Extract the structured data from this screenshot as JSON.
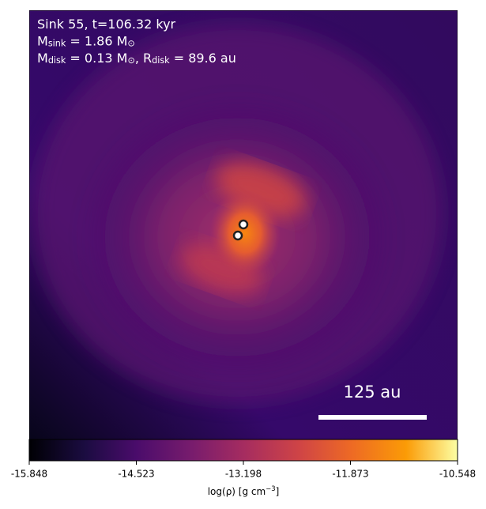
{
  "chart_data": {
    "type": "density_map",
    "annotations": [
      [
        "Sink 55, t=106.32 kyr"
      ],
      [
        "M",
        {
          "sub": "sink"
        },
        " = 1.86 M",
        {
          "sub": "⊙"
        }
      ],
      [
        "M",
        {
          "sub": "disk"
        },
        " = 0.13 M",
        {
          "sub": "⊙"
        },
        ", R",
        {
          "sub": "disk"
        },
        " = 89.6 au"
      ]
    ],
    "scale_bar_label": "125 au",
    "colorbar": {
      "label": [
        "log(ρ) [g cm",
        {
          "sup": "−3"
        },
        "]"
      ],
      "cmap": "inferno",
      "lim": [
        -15.848,
        -10.548
      ],
      "ticks": [
        -15.848,
        -14.523,
        -13.198,
        -11.873,
        -10.548
      ]
    }
  }
}
